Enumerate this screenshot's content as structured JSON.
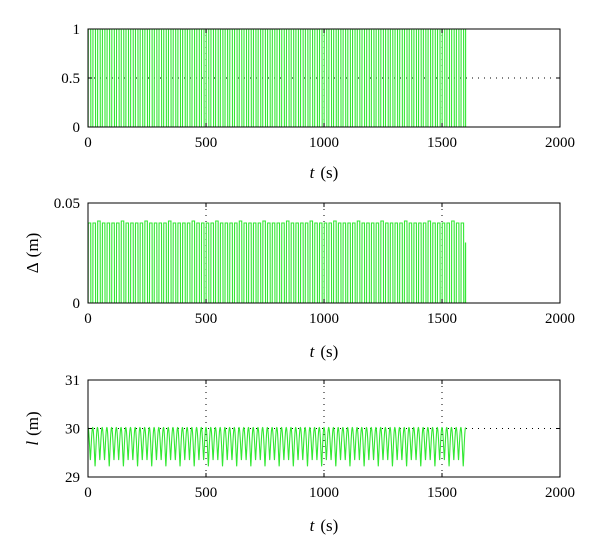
{
  "colors": {
    "series": "#33e833",
    "axes": "#000000"
  },
  "chart_data": [
    {
      "type": "line",
      "title": "",
      "xlabel_var": "t",
      "xlabel_unit": "(s)",
      "ylabel_var": "",
      "ylabel_unit": "",
      "xlim": [
        0,
        2000
      ],
      "ylim": [
        0,
        1
      ],
      "xticks": [
        0,
        500,
        1000,
        1500,
        2000
      ],
      "xtick_labels": [
        "0",
        "500",
        "1000",
        "1500",
        "2000"
      ],
      "yticks": [
        0,
        0.5,
        1
      ],
      "ytick_labels": [
        "0",
        "0.5",
        "1"
      ],
      "grid": true,
      "legend": "none",
      "series": [
        {
          "pattern": "pulse",
          "x_end": 1600,
          "period": 20,
          "low": 0,
          "high": 1
        }
      ]
    },
    {
      "type": "line",
      "title": "",
      "xlabel_var": "t",
      "xlabel_unit": "(s)",
      "ylabel_var": "Δ",
      "ylabel_unit": "(m)",
      "xlim": [
        0,
        2000
      ],
      "ylim": [
        0,
        0.05
      ],
      "xticks": [
        0,
        500,
        1000,
        1500,
        2000
      ],
      "xtick_labels": [
        "0",
        "500",
        "1000",
        "1500",
        "2000"
      ],
      "yticks": [
        0,
        0.05
      ],
      "ytick_labels": [
        "0",
        "0.05"
      ],
      "grid": true,
      "legend": "none",
      "series": [
        {
          "pattern": "pulse",
          "x_end": 1600,
          "period": 20,
          "low": 0,
          "high": 0.04,
          "high_alt": 0.041,
          "end_value": 0.03
        }
      ]
    },
    {
      "type": "line",
      "title": "",
      "xlabel_var": "t",
      "xlabel_unit": "(s)",
      "ylabel_var": "l",
      "ylabel_unit": "(m)",
      "xlim": [
        0,
        2000
      ],
      "ylim": [
        29,
        31
      ],
      "xticks": [
        0,
        500,
        1000,
        1500,
        2000
      ],
      "xtick_labels": [
        "0",
        "500",
        "1000",
        "1500",
        "2000"
      ],
      "yticks": [
        29,
        30,
        31
      ],
      "ytick_labels": [
        "29",
        "30",
        "31"
      ],
      "grid": true,
      "legend": "none",
      "series": [
        {
          "pattern": "oscillation",
          "x_end": 1600,
          "period": 20,
          "max": 30.02,
          "min": 29.35,
          "min_alt": 29.22
        }
      ]
    }
  ]
}
